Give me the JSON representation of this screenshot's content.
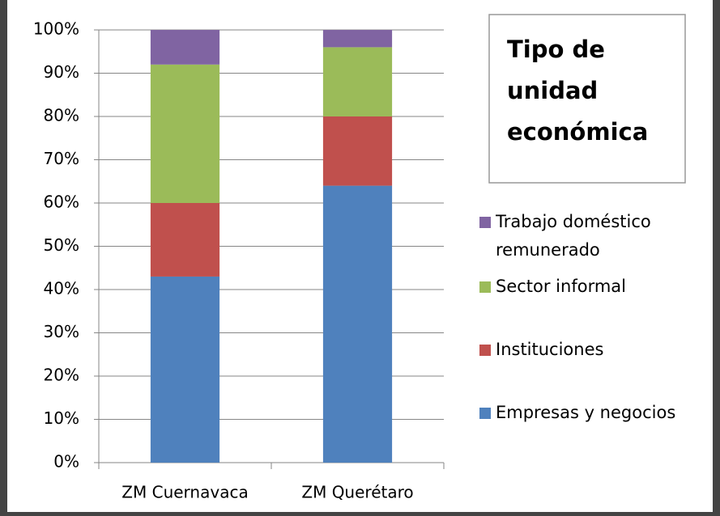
{
  "chart_data": {
    "type": "stacked_bar",
    "title": "Tipo de unidad económica",
    "categories": [
      "ZM Cuernavaca",
      "ZM Querétaro"
    ],
    "series": [
      {
        "name": "Empresas y negocios",
        "color": "#4f81bd",
        "values": [
          43,
          64
        ]
      },
      {
        "name": "Instituciones",
        "color": "#c0504d",
        "values": [
          17,
          16
        ]
      },
      {
        "name": "Sector informal",
        "color": "#9bbb59",
        "values": [
          32,
          16
        ]
      },
      {
        "name": "Trabajo doméstico remunerado",
        "color": "#8064a2",
        "values": [
          8,
          4
        ]
      }
    ],
    "ylim": [
      0,
      100
    ],
    "yticks": [
      {
        "value": 0,
        "label": "0%"
      },
      {
        "value": 10,
        "label": "10%"
      },
      {
        "value": 20,
        "label": "20%"
      },
      {
        "value": 30,
        "label": "30%"
      },
      {
        "value": 40,
        "label": "40%"
      },
      {
        "value": 50,
        "label": "50%"
      },
      {
        "value": 60,
        "label": "60%"
      },
      {
        "value": 70,
        "label": "70%"
      },
      {
        "value": 80,
        "label": "80%"
      },
      {
        "value": 90,
        "label": "90%"
      },
      {
        "value": 100,
        "label": "100%"
      }
    ],
    "grid": true,
    "legend": "right"
  }
}
